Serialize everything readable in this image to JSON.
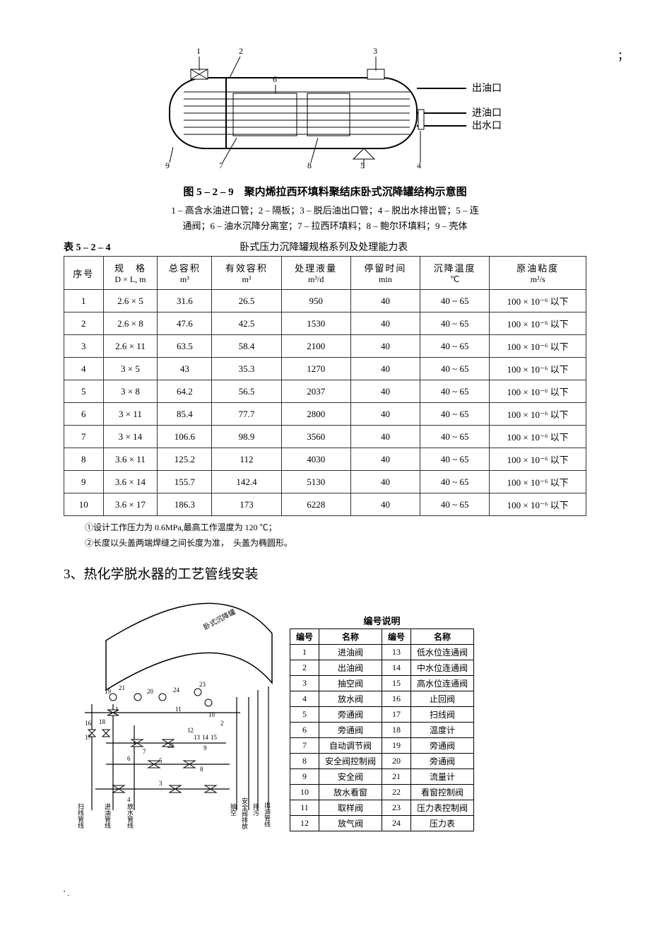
{
  "figure1": {
    "title": "图 5 – 2 – 9　聚内烯拉西环填料聚结床卧式沉降罐结构示意图",
    "legend_line1": "1 – 高含水油进口管；2 – 隔板；3 – 脱后油出口管；4 – 脱出水排出管；5 – 连",
    "legend_line2": "通阀；6 – 油水沉降分离室；7 – 拉西环填料；8 – 鲍尔环填料；9 – 壳体",
    "side_labels": {
      "oil_out": "出油口",
      "oil_in": "进油口",
      "water_out": "出水口"
    },
    "callouts": [
      "1",
      "2",
      "3",
      "4",
      "5",
      "6",
      "7",
      "8",
      "9"
    ]
  },
  "table1": {
    "number": "表 5 – 2 – 4",
    "caption": "卧式压力沉降罐规格系列及处理能力表",
    "headers": [
      {
        "l1": "序号",
        "l2": ""
      },
      {
        "l1": "规　格",
        "l2": "D × L, m"
      },
      {
        "l1": "总容积",
        "l2": "m³"
      },
      {
        "l1": "有效容积",
        "l2": "m³"
      },
      {
        "l1": "处理液量",
        "l2": "m³/d"
      },
      {
        "l1": "停留时间",
        "l2": "min"
      },
      {
        "l1": "沉降温度",
        "l2": "℃"
      },
      {
        "l1": "原油粘度",
        "l2": "m²/s"
      }
    ],
    "rows": [
      [
        "1",
        "2.6 × 5",
        "31.6",
        "26.5",
        "950",
        "40",
        "40 ~ 65",
        "100 × 10⁻⁶ 以下"
      ],
      [
        "2",
        "2.6 × 8",
        "47.6",
        "42.5",
        "1530",
        "40",
        "40 ~ 65",
        "100 × 10⁻⁶ 以下"
      ],
      [
        "3",
        "2.6 × 11",
        "63.5",
        "58.4",
        "2100",
        "40",
        "40 ~ 65",
        "100 × 10⁻⁶ 以下"
      ],
      [
        "4",
        "3 × 5",
        "43",
        "35.3",
        "1270",
        "40",
        "40 ~ 65",
        "100 × 10⁻⁶ 以下"
      ],
      [
        "5",
        "3 × 8",
        "64.2",
        "56.5",
        "2037",
        "40",
        "40 ~ 65",
        "100 × 10⁻⁶ 以下"
      ],
      [
        "6",
        "3 × 11",
        "85.4",
        "77.7",
        "2800",
        "40",
        "40 ~ 65",
        "100 × 10⁻⁶ 以下"
      ],
      [
        "7",
        "3 × 14",
        "106.6",
        "98.9",
        "3560",
        "40",
        "40 ~ 65",
        "100 × 10⁻⁶ 以下"
      ],
      [
        "8",
        "3.6 × 11",
        "125.2",
        "112",
        "4030",
        "40",
        "40 ~ 65",
        "100 × 10⁻⁶ 以下"
      ],
      [
        "9",
        "3.6 × 14",
        "155.7",
        "142.4",
        "5130",
        "40",
        "40 ~ 65",
        "100 × 10⁻⁶ 以下"
      ],
      [
        "10",
        "3.6 × 17",
        "186.3",
        "173",
        "6228",
        "40",
        "40 ~ 65",
        "100 × 10⁻⁶ 以下"
      ]
    ],
    "notes": [
      "①设计工作压力为 0.6MPa,最高工作温度为 120 ℃；",
      "②长度以头盖两端焊缝之间长度为准，　头盖为椭圆形。"
    ]
  },
  "section3": {
    "heading": "3、热化学脱水器的工艺管线安装",
    "diagram_label": "卧式沉降罐",
    "bottom_labels": [
      "扫线管线",
      "进油管线",
      "放水管线",
      "抽空",
      "安全阀排放",
      "排污",
      "出油管线"
    ],
    "callouts": [
      "1",
      "2",
      "3",
      "4",
      "5",
      "6",
      "7",
      "8",
      "9",
      "10",
      "11",
      "12",
      "13",
      "14",
      "15",
      "16",
      "17",
      "18",
      "19",
      "20",
      "21",
      "22",
      "23",
      "24"
    ]
  },
  "legend_table": {
    "caption": "编号说明",
    "headers": [
      "编号",
      "名称",
      "编号",
      "名称"
    ],
    "rows": [
      [
        "1",
        "进油阀",
        "13",
        "低水位连通阀"
      ],
      [
        "2",
        "出油阀",
        "14",
        "中水位连通阀"
      ],
      [
        "3",
        "抽空阀",
        "15",
        "高水位连通阀"
      ],
      [
        "4",
        "放水阀",
        "16",
        "止回阀"
      ],
      [
        "5",
        "旁通阀",
        "17",
        "扫线阀"
      ],
      [
        "6",
        "旁通阀",
        "18",
        "温度计"
      ],
      [
        "7",
        "自动调节阀",
        "19",
        "旁通阀"
      ],
      [
        "8",
        "安全阀控制阀",
        "20",
        "旁通阀"
      ],
      [
        "9",
        "安全阀",
        "21",
        "流量计"
      ],
      [
        "10",
        "放水看窗",
        "22",
        "看窗控制阀"
      ],
      [
        "11",
        "取样阀",
        "23",
        "压力表控制阀"
      ],
      [
        "12",
        "放气阀",
        "24",
        "压力表"
      ]
    ]
  },
  "footer": "' ."
}
